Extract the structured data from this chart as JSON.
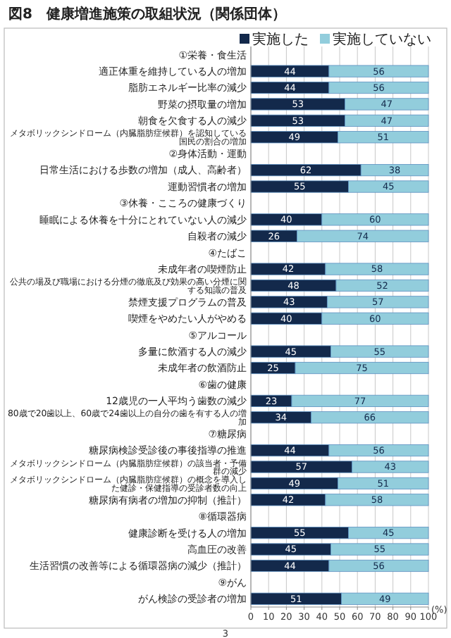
{
  "chart_data": {
    "type": "bar",
    "orientation": "horizontal",
    "stacked": true,
    "data_labels": true,
    "grid": "x",
    "legend": "top right",
    "title": "図8　健康増進施策の取組状況（関係団体）",
    "xlabel": "(%)",
    "annotations": [
      "3"
    ],
    "xlim": [
      0,
      100
    ],
    "xticks": [
      0,
      10,
      20,
      30,
      40,
      50,
      60,
      70,
      80,
      90,
      100
    ],
    "categories": [
      "①栄養・食生活",
      "適正体重を維持している人の増加",
      "脂肪エネルギー比率の減少",
      "野菜の摂取量の増加",
      "朝食を欠食する人の減少",
      "メタボリックシンドローム（内臓脂肪症候群）を認知している国民の割合の増加",
      "②身体活動・運動",
      "日常生活における歩数の増加（成人、高齢者）",
      "運動習慣者の増加",
      "③休養・こころの健康づくり",
      "睡眠による休養を十分にとれていない人の減少",
      "自殺者の減少",
      "④たばこ",
      "未成年者の喫煙防止",
      "公共の場及び職場における分煙の徹底及び効果の高い分煙に関する知識の普及",
      "禁煙支援プログラムの普及",
      "喫煙をやめたい人がやめる",
      "⑤アルコール",
      "多量に飲酒する人の減少",
      "未成年者の飲酒防止",
      "⑥歯の健康",
      "12歳児の一人平均う歯数の減少",
      "80歳で20歯以上、60歳で24歯以上の自分の歯を有する人の増加",
      "⑦糖尿病",
      "糖尿病検診受診後の事後指導の推進",
      "メタボリックシンドローム（内臓脂肪症候群）の該当者・予備群の減少",
      "メタボリックシンドローム（内臓脂肪症候群）の概念を導入した健診・保健指導の受診者数の向上",
      "糖尿病有病者の増加の抑制（推計）",
      "⑧循環器病",
      "健康診断を受ける人の増加",
      "高血圧の改善",
      "生活習慣の改善等による循環器病の減少（推計）",
      "⑨がん",
      "がん検診の受診者の増加"
    ],
    "series": [
      {
        "name": "実施した",
        "color": "#13294b",
        "values": [
          null,
          44,
          44,
          53,
          53,
          49,
          null,
          62,
          55,
          null,
          40,
          26,
          null,
          42,
          48,
          43,
          40,
          null,
          45,
          25,
          null,
          23,
          34,
          null,
          44,
          57,
          49,
          42,
          null,
          55,
          45,
          44,
          null,
          51
        ]
      },
      {
        "name": "実施していない",
        "color": "#92cddc",
        "values": [
          null,
          56,
          56,
          47,
          47,
          51,
          null,
          38,
          45,
          null,
          60,
          74,
          null,
          58,
          52,
          57,
          60,
          null,
          55,
          75,
          null,
          77,
          66,
          null,
          56,
          43,
          51,
          58,
          null,
          45,
          55,
          56,
          null,
          49
        ]
      }
    ]
  }
}
